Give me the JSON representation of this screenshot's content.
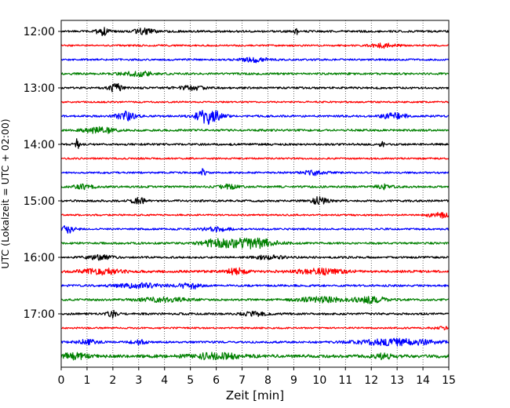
{
  "chart_data": {
    "type": "line",
    "title": "",
    "xlabel": "Zeit  [min]",
    "ylabel": "UTC (Lokalzeit = UTC + 02:00)",
    "xlim": [
      0,
      15
    ],
    "x_ticks": [
      "0",
      "1",
      "2",
      "3",
      "4",
      "5",
      "6",
      "7",
      "8",
      "9",
      "10",
      "11",
      "12",
      "13",
      "14",
      "15"
    ],
    "y_ticks": [
      "12:00",
      "13:00",
      "14:00",
      "15:00",
      "16:00",
      "17:00"
    ],
    "grid": "vertical-dotted",
    "colors": [
      "#000000",
      "#ff0000",
      "#0000ff",
      "#008000"
    ],
    "series": [
      {
        "start": "12:00",
        "color": "#000000",
        "amp": 1.0,
        "events": [
          {
            "t": 1.6,
            "a": 3.5,
            "w": 0.25
          },
          {
            "t": 3.2,
            "a": 2.5,
            "w": 0.4
          },
          {
            "t": 9.1,
            "a": 5.0,
            "w": 0.05
          }
        ]
      },
      {
        "start": "12:15",
        "color": "#ff0000",
        "amp": 0.8,
        "events": [
          {
            "t": 12.5,
            "a": 2.0,
            "w": 0.5
          }
        ]
      },
      {
        "start": "12:30",
        "color": "#0000ff",
        "amp": 0.9,
        "events": [
          {
            "t": 7.5,
            "a": 2.2,
            "w": 0.5
          }
        ]
      },
      {
        "start": "12:45",
        "color": "#008000",
        "amp": 1.0,
        "events": [
          {
            "t": 3.0,
            "a": 2.0,
            "w": 0.6
          }
        ]
      },
      {
        "start": "13:00",
        "color": "#000000",
        "amp": 1.0,
        "events": [
          {
            "t": 2.1,
            "a": 4.0,
            "w": 0.25
          },
          {
            "t": 5.0,
            "a": 2.0,
            "w": 0.5
          }
        ]
      },
      {
        "start": "13:15",
        "color": "#ff0000",
        "amp": 0.8,
        "events": []
      },
      {
        "start": "13:30",
        "color": "#0000ff",
        "amp": 1.0,
        "events": [
          {
            "t": 2.5,
            "a": 4.0,
            "w": 0.35
          },
          {
            "t": 5.7,
            "a": 7.5,
            "w": 0.45
          },
          {
            "t": 12.9,
            "a": 2.5,
            "w": 0.5
          }
        ]
      },
      {
        "start": "13:45",
        "color": "#008000",
        "amp": 1.0,
        "events": [
          {
            "t": 1.5,
            "a": 3.0,
            "w": 0.6
          }
        ]
      },
      {
        "start": "14:00",
        "color": "#000000",
        "amp": 1.0,
        "events": [
          {
            "t": 0.6,
            "a": 5.0,
            "w": 0.1
          },
          {
            "t": 12.4,
            "a": 2.5,
            "w": 0.1
          }
        ]
      },
      {
        "start": "14:15",
        "color": "#ff0000",
        "amp": 0.8,
        "events": []
      },
      {
        "start": "14:30",
        "color": "#0000ff",
        "amp": 0.9,
        "events": [
          {
            "t": 5.5,
            "a": 4.0,
            "w": 0.08
          },
          {
            "t": 9.8,
            "a": 2.0,
            "w": 0.5
          }
        ]
      },
      {
        "start": "14:45",
        "color": "#008000",
        "amp": 1.0,
        "events": [
          {
            "t": 0.9,
            "a": 2.0,
            "w": 0.4
          },
          {
            "t": 6.5,
            "a": 2.0,
            "w": 0.4
          },
          {
            "t": 12.5,
            "a": 2.5,
            "w": 0.3
          }
        ]
      },
      {
        "start": "15:00",
        "color": "#000000",
        "amp": 1.0,
        "events": [
          {
            "t": 3.0,
            "a": 2.5,
            "w": 0.3
          },
          {
            "t": 10.0,
            "a": 3.5,
            "w": 0.3
          }
        ]
      },
      {
        "start": "15:15",
        "color": "#ff0000",
        "amp": 0.8,
        "events": [
          {
            "t": 14.6,
            "a": 3.0,
            "w": 0.4
          }
        ]
      },
      {
        "start": "15:30",
        "color": "#0000ff",
        "amp": 0.9,
        "events": [
          {
            "t": 0.3,
            "a": 4.0,
            "w": 0.25
          },
          {
            "t": 6.0,
            "a": 2.0,
            "w": 0.5
          }
        ]
      },
      {
        "start": "15:45",
        "color": "#008000",
        "amp": 1.0,
        "events": [
          {
            "t": 6.0,
            "a": 3.5,
            "w": 0.6
          },
          {
            "t": 7.4,
            "a": 5.0,
            "w": 0.9
          }
        ]
      },
      {
        "start": "16:00",
        "color": "#000000",
        "amp": 1.0,
        "events": [
          {
            "t": 1.5,
            "a": 2.0,
            "w": 0.5
          },
          {
            "t": 8.0,
            "a": 1.8,
            "w": 0.6
          }
        ]
      },
      {
        "start": "16:15",
        "color": "#ff0000",
        "amp": 1.2,
        "events": [
          {
            "t": 1.5,
            "a": 2.5,
            "w": 0.8
          },
          {
            "t": 6.8,
            "a": 3.0,
            "w": 0.4
          },
          {
            "t": 10.0,
            "a": 2.5,
            "w": 1.0
          }
        ]
      },
      {
        "start": "16:30",
        "color": "#0000ff",
        "amp": 1.0,
        "events": [
          {
            "t": 3.0,
            "a": 2.0,
            "w": 1.0
          },
          {
            "t": 5.0,
            "a": 3.0,
            "w": 0.4
          }
        ]
      },
      {
        "start": "16:45",
        "color": "#008000",
        "amp": 1.0,
        "events": [
          {
            "t": 4.0,
            "a": 2.0,
            "w": 1.0
          },
          {
            "t": 10.0,
            "a": 2.5,
            "w": 1.0
          },
          {
            "t": 12.0,
            "a": 3.0,
            "w": 0.6
          }
        ]
      },
      {
        "start": "17:00",
        "color": "#000000",
        "amp": 1.0,
        "events": [
          {
            "t": 2.0,
            "a": 3.5,
            "w": 0.2
          },
          {
            "t": 7.5,
            "a": 1.8,
            "w": 0.5
          }
        ]
      },
      {
        "start": "17:15",
        "color": "#ff0000",
        "amp": 0.8,
        "events": [
          {
            "t": 14.7,
            "a": 2.0,
            "w": 0.3
          }
        ]
      },
      {
        "start": "17:30",
        "color": "#0000ff",
        "amp": 1.0,
        "events": [
          {
            "t": 1.0,
            "a": 2.0,
            "w": 0.4
          },
          {
            "t": 3.0,
            "a": 2.0,
            "w": 0.3
          },
          {
            "t": 13.0,
            "a": 3.0,
            "w": 1.5
          }
        ]
      },
      {
        "start": "17:45",
        "color": "#008000",
        "amp": 1.5,
        "events": [
          {
            "t": 0.5,
            "a": 2.5,
            "w": 0.5
          },
          {
            "t": 6.0,
            "a": 2.5,
            "w": 1.0
          },
          {
            "t": 12.5,
            "a": 2.5,
            "w": 0.4
          }
        ]
      }
    ]
  }
}
